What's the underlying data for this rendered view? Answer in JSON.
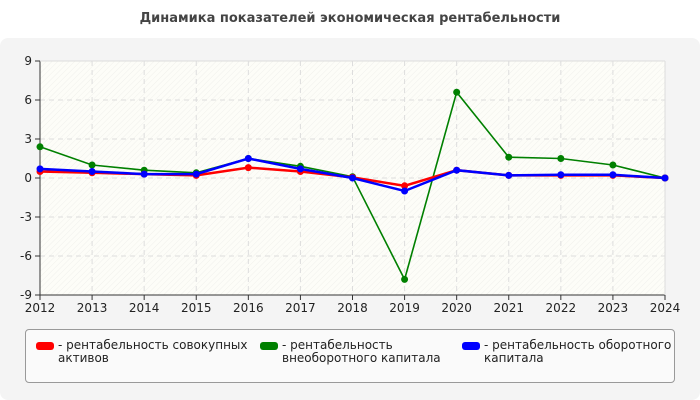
{
  "chart_data": {
    "type": "line",
    "title": "Динамика показателей экономическая рентабельности",
    "categories": [
      "2012",
      "2013",
      "2014",
      "2015",
      "2016",
      "2017",
      "2018",
      "2019",
      "2020",
      "2021",
      "2022",
      "2023",
      "2024"
    ],
    "ylim": [
      -9,
      9
    ],
    "yticks": [
      "9",
      "6",
      "3",
      "0",
      "-3",
      "-6",
      "-9"
    ],
    "grid": true,
    "legend_position": "bottom",
    "series": [
      {
        "name": "- рентабельность совокупных активов",
        "color": "#ff0000",
        "values": [
          0.5,
          0.4,
          0.3,
          0.2,
          0.8,
          0.5,
          0.05,
          -0.6,
          0.6,
          0.2,
          0.2,
          0.2,
          0
        ]
      },
      {
        "name": "- рентабельность внеоборотного капитала",
        "color": "#008000",
        "values": [
          2.4,
          1.0,
          0.6,
          0.4,
          1.5,
          0.9,
          0.1,
          -7.8,
          6.6,
          1.6,
          1.5,
          1.0,
          0
        ]
      },
      {
        "name": "- рентабельность оборотного капитала",
        "color": "#0000ff",
        "values": [
          0.7,
          0.5,
          0.3,
          0.3,
          1.5,
          0.7,
          0,
          -1.0,
          0.6,
          0.2,
          0.25,
          0.25,
          0
        ]
      }
    ]
  }
}
